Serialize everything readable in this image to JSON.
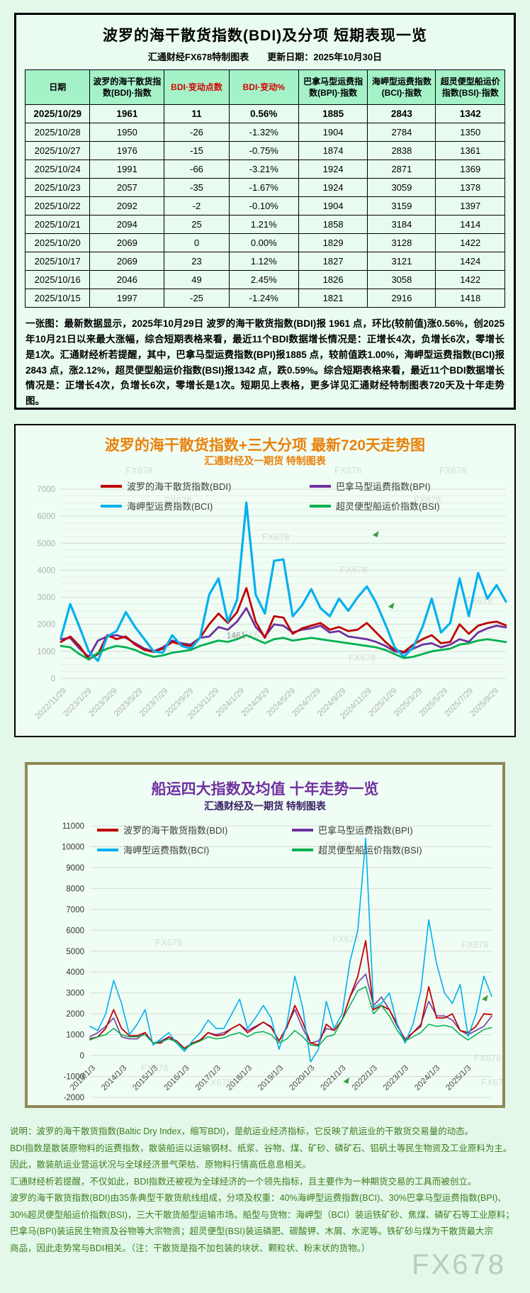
{
  "report": {
    "title": "波罗的海干散货指数(BDI)及分项  短期表现一览",
    "subtitle": "汇通财经FX678特制图表　　更新日期：2025年10月30日",
    "columns": [
      "日期",
      "波罗的海干散货指数(BDI)·指数",
      "BDI·变动点数",
      "BDI·变动%",
      "巴拿马型运费指数(BPI)·指数",
      "海岬型运费指数(BCI)·指数",
      "超灵便型船运价指数(BSI)·指数"
    ],
    "red_columns": [
      2,
      3
    ],
    "rows": [
      [
        "2025/10/29",
        "1961",
        "11",
        "0.56%",
        "1885",
        "2843",
        "1342"
      ],
      [
        "2025/10/28",
        "1950",
        "-26",
        "-1.32%",
        "1904",
        "2784",
        "1350"
      ],
      [
        "2025/10/27",
        "1976",
        "-15",
        "-0.75%",
        "1874",
        "2838",
        "1361"
      ],
      [
        "2025/10/24",
        "1991",
        "-66",
        "-3.21%",
        "1924",
        "2871",
        "1369"
      ],
      [
        "2025/10/23",
        "2057",
        "-35",
        "-1.67%",
        "1924",
        "3059",
        "1378"
      ],
      [
        "2025/10/22",
        "2092",
        "-2",
        "-0.10%",
        "1904",
        "3159",
        "1397"
      ],
      [
        "2025/10/21",
        "2094",
        "25",
        "1.21%",
        "1858",
        "3184",
        "1414"
      ],
      [
        "2025/10/20",
        "2069",
        "0",
        "0.00%",
        "1829",
        "3128",
        "1422"
      ],
      [
        "2025/10/17",
        "2069",
        "23",
        "1.12%",
        "1827",
        "3121",
        "1424"
      ],
      [
        "2025/10/16",
        "2046",
        "49",
        "2.45%",
        "1826",
        "3058",
        "1422"
      ],
      [
        "2025/10/15",
        "1997",
        "-25",
        "-1.24%",
        "1821",
        "2916",
        "1418"
      ]
    ],
    "note": "一张图：最新数据显示，2025年10月29日 波罗的海干散货指数(BDI)报 1961 点，环比(较前值)涨0.56%，创2025年10月21日以来最大涨幅，综合短期表格来看，最近11个BDI数据增长情况是：正增长4次，负增长6次，零增长是1次。汇通财经析若提醒，其中，巴拿马型运费指数(BPI)报1885 点，较前值跌1.00%，海岬型运费指数(BCI)报2843 点，涨2.12%，超灵便型船运价指数(BSI)报1342 点，跌0.59%。综合短期表格来看，最近11个BDI数据增长情况是：正增长4次，负增长6次，零增长是1次。短期见上表格，更多详见汇通财经特制图表720天及十年走势图。"
  },
  "chart_data": [
    {
      "id": "chart720",
      "type": "line",
      "title": "波罗的海干散货指数+三大分项  最新720天走势图",
      "subtitle": "汇通财经及一期货 特制图表",
      "ylim": [
        0,
        7000
      ],
      "ytick": 1000,
      "yminor": 250,
      "grid": true,
      "legend_position": "top",
      "x_labels": [
        "2022/11/29",
        "2023/1/29",
        "2023/3/29",
        "2023/5/29",
        "2023/7/29",
        "2023/9/29",
        "2023/11/29",
        "2024/1/29",
        "2024/3/29",
        "2024/5/29",
        "2024/7/29",
        "2024/9/29",
        "2024/11/29",
        "2025/1/29",
        "2025/3/29",
        "2025/5/29",
        "2025/7/29",
        "2025/9/29"
      ],
      "series": [
        {
          "name": "波罗的海干散货指数(BDI)",
          "color": "#c00000",
          "values": [
            1350,
            1550,
            1200,
            700,
            900,
            1600,
            1450,
            1550,
            1250,
            1050,
            980,
            1100,
            1350,
            1250,
            1200,
            1500,
            2000,
            2400,
            2050,
            2450,
            3340,
            2100,
            1500,
            2300,
            2250,
            1650,
            1850,
            1950,
            2050,
            1800,
            1900,
            1750,
            1800,
            2050,
            1700,
            1350,
            1050,
            980,
            1250,
            1450,
            1600,
            1300,
            1350,
            2000,
            1650,
            1950,
            2050,
            2100,
            1961
          ]
        },
        {
          "name": "巴拿马型运费指数(BPI)",
          "color": "#7030a0",
          "values": [
            1450,
            1500,
            1100,
            800,
            1400,
            1550,
            1600,
            1500,
            1300,
            1100,
            1000,
            1150,
            1400,
            1300,
            1250,
            1500,
            1550,
            1900,
            1800,
            2100,
            2600,
            1900,
            1550,
            2000,
            1950,
            1700,
            1800,
            1850,
            1950,
            1700,
            1750,
            1550,
            1500,
            1450,
            1350,
            1200,
            1000,
            950,
            1100,
            1250,
            1300,
            1150,
            1250,
            1450,
            1350,
            1700,
            1850,
            1950,
            1885
          ]
        },
        {
          "name": "海岬型运费指数(BCI)",
          "color": "#00b0f0",
          "values": [
            1500,
            2750,
            1900,
            1000,
            650,
            1550,
            1750,
            2450,
            1900,
            1450,
            1000,
            950,
            1600,
            1200,
            1100,
            1500,
            3100,
            3700,
            2100,
            2900,
            6500,
            3100,
            2400,
            4350,
            4400,
            2300,
            2700,
            3300,
            2600,
            2300,
            2950,
            2500,
            3000,
            3400,
            2800,
            2000,
            1150,
            800,
            1150,
            1900,
            2950,
            1700,
            2050,
            3700,
            2300,
            3900,
            2950,
            3450,
            2843
          ]
        },
        {
          "name": "超灵便型船运价指数(BSI)",
          "color": "#00b050",
          "values": [
            1200,
            1150,
            900,
            700,
            950,
            1100,
            1200,
            1150,
            1050,
            900,
            800,
            850,
            950,
            1000,
            1050,
            1200,
            1300,
            1400,
            1350,
            1450,
            1600,
            1450,
            1300,
            1450,
            1500,
            1400,
            1450,
            1500,
            1450,
            1400,
            1350,
            1300,
            1250,
            1200,
            1150,
            1050,
            900,
            750,
            800,
            900,
            1000,
            1050,
            1100,
            1250,
            1300,
            1400,
            1450,
            1400,
            1342
          ]
        }
      ],
      "annotations": [
        {
          "text": "1461",
          "fx": 0.372,
          "value": 1480
        }
      ],
      "watermark": "FX678"
    },
    {
      "id": "chart10y",
      "type": "line",
      "title": "船运四大指数及均值 十年走势一览",
      "subtitle": "汇通财经及一期货 特制图表",
      "ylim": [
        -2000,
        11000
      ],
      "ytick": 1000,
      "grid": true,
      "legend_position": "top",
      "x_labels": [
        "2013/1/3",
        "2014/1/3",
        "2015/1/3",
        "2016/1/3",
        "2017/1/3",
        "2018/1/3",
        "2019/1/3",
        "2020/1/3",
        "2021/1/3",
        "2022/1/3",
        "2023/1/3",
        "2024/1/3",
        "2025/1/3"
      ],
      "series": [
        {
          "name": "波罗的海干散货指数(BDI)",
          "color": "#c00000",
          "values": [
            800,
            900,
            1300,
            2200,
            1300,
            950,
            950,
            1100,
            600,
            600,
            900,
            700,
            350,
            600,
            750,
            1100,
            950,
            1000,
            1300,
            1500,
            1100,
            1350,
            1600,
            1350,
            700,
            1350,
            2400,
            1600,
            600,
            500,
            1500,
            1200,
            1700,
            2800,
            3800,
            5500,
            2200,
            2400,
            2200,
            1500,
            700,
            1100,
            1400,
            3300,
            1800,
            1800,
            2000,
            1200,
            1100,
            1400,
            2000,
            1961
          ]
        },
        {
          "name": "巴拿马型运费指数(BPI)",
          "color": "#7030a0",
          "values": [
            900,
            1100,
            1400,
            1800,
            900,
            800,
            800,
            1100,
            600,
            700,
            900,
            600,
            300,
            600,
            700,
            1100,
            1000,
            1100,
            1300,
            1500,
            1200,
            1400,
            1600,
            1400,
            700,
            1400,
            2200,
            1300,
            600,
            700,
            1300,
            1200,
            1700,
            2800,
            3500,
            3900,
            2400,
            2800,
            2200,
            1400,
            800,
            1100,
            1500,
            2600,
            1900,
            1900,
            1700,
            1200,
            1000,
            1200,
            1400,
            1885
          ]
        },
        {
          "name": "海岬型运费指数(BCI)",
          "color": "#00b0f0",
          "values": [
            1400,
            1200,
            2000,
            3600,
            2500,
            1000,
            1500,
            2200,
            500,
            800,
            1100,
            600,
            200,
            700,
            1100,
            1700,
            1300,
            1300,
            2000,
            2700,
            1300,
            1800,
            2400,
            1800,
            300,
            1500,
            3800,
            2300,
            -300,
            300,
            2600,
            1300,
            2000,
            4500,
            6000,
            10400,
            2300,
            2500,
            3000,
            1500,
            600,
            1500,
            3100,
            6500,
            4400,
            3000,
            2500,
            3400,
            900,
            2000,
            3800,
            2843
          ]
        },
        {
          "name": "超灵便型船运价指数(BSI)",
          "color": "#00b050",
          "values": [
            750,
            900,
            1000,
            1300,
            1000,
            900,
            900,
            1000,
            600,
            650,
            800,
            650,
            300,
            550,
            700,
            900,
            800,
            850,
            1000,
            1100,
            900,
            1100,
            1150,
            1000,
            600,
            800,
            1200,
            900,
            500,
            450,
            900,
            1000,
            1700,
            2400,
            3100,
            3300,
            2000,
            2400,
            1900,
            1200,
            700,
            900,
            1100,
            1500,
            1400,
            1450,
            1350,
            1000,
            750,
            1000,
            1250,
            1342
          ]
        }
      ],
      "annotations": [],
      "watermark": "FX678"
    }
  ],
  "footer": {
    "lines": [
      "说明：波罗的海干散货指数(Baltic Dry Index，缩写BDI)，是航运业经济指标，它反映了航运业的干散货交易量的动态。",
      "BDI指数是散装原物料的运费指数，散装船运以运输钢材、纸浆、谷物、煤、矿砂、磷矿石、铝矾土等民生物资及工业原料为主。",
      "因此，散装航运业营运状况与全球经济景气荣枯、原物料行情高低息息相关。",
      "汇通财经析若提醒，不仅如此，BDI指数还被视为全球经济的一个领先指标，且主要作为一种期货交易的工具而被创立。",
      "波罗的海干散货指数(BDI)由35条典型干散货航线组成，分项及权重：40%海岬型运费指数(BCI)、30%巴拿马型运费指数(BPI)、",
      "30%超灵便型船运价指数(BSI)，三大干散货船型运输市场。船型与货物：海岬型（BCI）装运铁矿砂、焦煤、磷矿石等工业原料；",
      "巴拿马(BPI)装运民生物资及谷物等大宗物资；超灵便型(BSI)装运磷肥、碳酸钾、木屑、水泥等。铁矿砂与煤为干散货最大宗",
      "商品，因此走势常与BDI相关。（注：干散货是指不加包装的块状、颗粒状、粉末状的货物。）"
    ],
    "watermark": "FX678"
  }
}
